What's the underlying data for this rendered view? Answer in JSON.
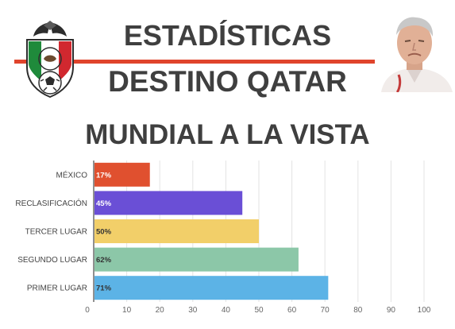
{
  "header": {
    "line1": "ESTADÍSTICAS",
    "line2": "DESTINO QATAR",
    "line3": "MUNDIAL A LA VISTA"
  },
  "colors": {
    "accent_line": "#e0442c",
    "title_text": "#3f3f3f"
  },
  "icons": {
    "logo": "mexico-federation-crest-icon",
    "photo": "coach-portrait"
  },
  "chart_data": {
    "type": "bar",
    "orientation": "horizontal",
    "categories": [
      "MÉXICO",
      "RECLASIFICACIÓN",
      "TERCER LUGAR",
      "SEGUNDO LUGAR",
      "PRIMER LUGAR"
    ],
    "values": [
      17,
      45,
      50,
      62,
      71
    ],
    "data_labels": [
      "17%",
      "45%",
      "50%",
      "62%",
      "71%"
    ],
    "bar_colors": [
      "#e0502f",
      "#6a4fd6",
      "#f2cf69",
      "#8cc7a8",
      "#5cb3e6"
    ],
    "label_colors": [
      "#ffffff",
      "#ffffff",
      "#333333",
      "#333333",
      "#333333"
    ],
    "xlim": [
      0,
      100
    ],
    "x_ticks": [
      0,
      10,
      20,
      30,
      40,
      50,
      60,
      70,
      80,
      90,
      100
    ],
    "grid": true,
    "title": "",
    "xlabel": "",
    "ylabel": ""
  }
}
